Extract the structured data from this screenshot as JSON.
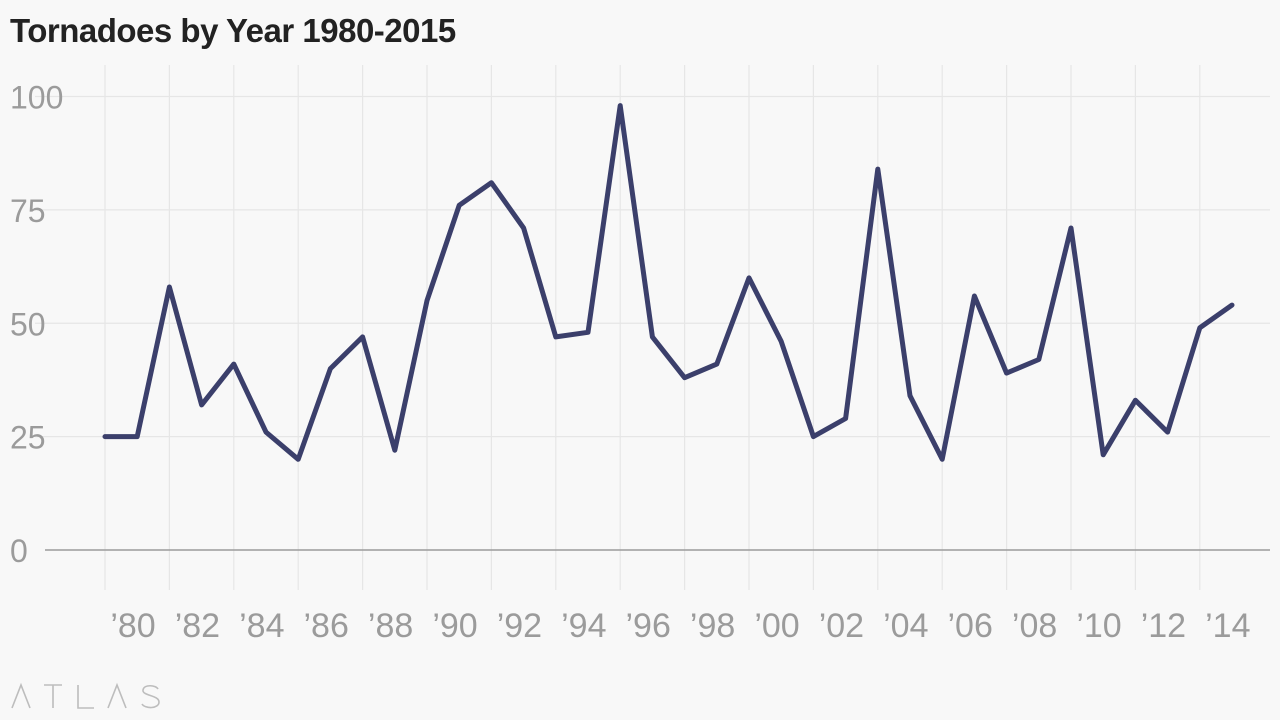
{
  "title": "Tornadoes by Year 1980-2015",
  "watermark": "ATLAS",
  "chart_data": {
    "type": "line",
    "title": "Tornadoes by Year 1980-2015",
    "xlabel": "",
    "ylabel": "",
    "x": [
      1980,
      1981,
      1982,
      1983,
      1984,
      1985,
      1986,
      1987,
      1988,
      1989,
      1990,
      1991,
      1992,
      1993,
      1994,
      1995,
      1996,
      1997,
      1998,
      1999,
      2000,
      2001,
      2002,
      2003,
      2004,
      2005,
      2006,
      2007,
      2008,
      2009,
      2010,
      2011,
      2012,
      2013,
      2014,
      2015
    ],
    "values": [
      25,
      25,
      58,
      32,
      41,
      26,
      20,
      40,
      47,
      22,
      55,
      76,
      81,
      71,
      47,
      48,
      98,
      47,
      38,
      41,
      60,
      46,
      25,
      29,
      84,
      34,
      20,
      56,
      39,
      42,
      71,
      21,
      33,
      26,
      49,
      54
    ],
    "ylim": [
      0,
      100
    ],
    "y_ticks": [
      0,
      25,
      50,
      75,
      100
    ],
    "x_tick_years": [
      1980,
      1982,
      1984,
      1986,
      1988,
      1990,
      1992,
      1994,
      1996,
      1998,
      2000,
      2002,
      2004,
      2006,
      2008,
      2010,
      2012,
      2014
    ],
    "x_tick_labels": [
      "’80",
      "’82",
      "’84",
      "’86",
      "’88",
      "’90",
      "’92",
      "’94",
      "’96",
      "’98",
      "’00",
      "’02",
      "’04",
      "’06",
      "’08",
      "’10",
      "’12",
      "’14"
    ],
    "grid": true,
    "line_color": "#3b3f6b",
    "grid_color": "#e6e6e6",
    "baseline_color": "#9b9b9b"
  }
}
